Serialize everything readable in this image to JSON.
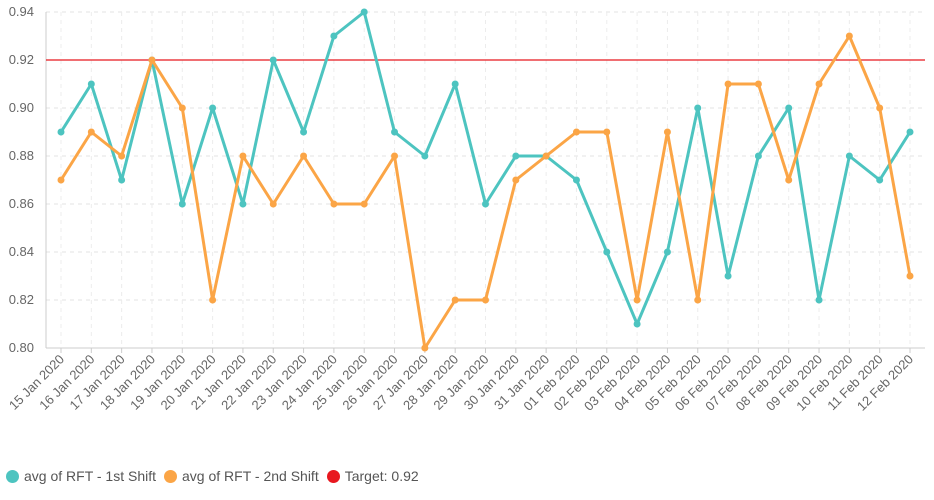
{
  "chart_data": {
    "type": "line",
    "categories": [
      "15 Jan 2020",
      "16 Jan 2020",
      "17 Jan 2020",
      "18 Jan 2020",
      "19 Jan 2020",
      "20 Jan 2020",
      "21 Jan 2020",
      "22 Jan 2020",
      "23 Jan 2020",
      "24 Jan 2020",
      "25 Jan 2020",
      "26 Jan 2020",
      "27 Jan 2020",
      "28 Jan 2020",
      "29 Jan 2020",
      "30 Jan 2020",
      "31 Jan 2020",
      "01 Feb 2020",
      "02 Feb 2020",
      "03 Feb 2020",
      "04 Feb 2020",
      "05 Feb 2020",
      "06 Feb 2020",
      "07 Feb 2020",
      "08 Feb 2020",
      "09 Feb 2020",
      "10 Feb 2020",
      "11 Feb 2020",
      "12 Feb 2020"
    ],
    "series": [
      {
        "name": "avg of RFT - 1st Shift",
        "color": "#4dc4c0",
        "values": [
          0.89,
          0.91,
          0.87,
          0.92,
          0.86,
          0.9,
          0.86,
          0.92,
          0.89,
          0.93,
          0.94,
          0.89,
          0.88,
          0.91,
          0.86,
          0.88,
          0.88,
          0.87,
          0.84,
          0.81,
          0.84,
          0.9,
          0.83,
          0.88,
          0.9,
          0.82,
          0.88,
          0.87,
          0.89
        ]
      },
      {
        "name": "avg of RFT - 2nd Shift",
        "color": "#fba546",
        "values": [
          0.87,
          0.89,
          0.88,
          0.92,
          0.9,
          0.82,
          0.88,
          0.86,
          0.88,
          0.86,
          0.86,
          0.88,
          0.8,
          0.82,
          0.82,
          0.87,
          0.88,
          0.89,
          0.89,
          0.82,
          0.89,
          0.82,
          0.91,
          0.91,
          0.87,
          0.91,
          0.93,
          0.9,
          0.83
        ]
      }
    ],
    "target": {
      "label": "Target: 0.92",
      "value": 0.92,
      "color": "#e8181f"
    },
    "ylim": [
      0.8,
      0.94
    ],
    "yticks": [
      "0.80",
      "0.82",
      "0.84",
      "0.86",
      "0.88",
      "0.90",
      "0.92",
      "0.94"
    ],
    "grid": true,
    "legend_position": "bottom-left"
  }
}
